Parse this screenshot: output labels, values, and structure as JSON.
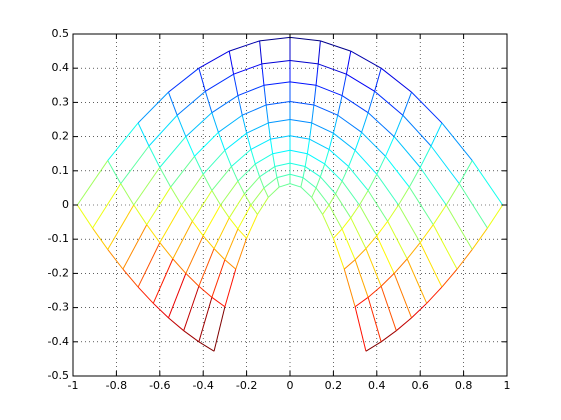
{
  "chart_data": {
    "type": "mesh",
    "colormap": "jet",
    "grid": true,
    "xlim": [
      -1,
      1
    ],
    "ylim": [
      -0.5,
      0.5
    ],
    "xticks": [
      -1,
      -0.8,
      -0.6,
      -0.4,
      -0.2,
      0,
      0.2,
      0.4,
      0.6,
      0.8,
      1
    ],
    "yticks": [
      -0.5,
      -0.4,
      -0.3,
      -0.2,
      -0.1,
      0,
      0.1,
      0.2,
      0.3,
      0.4,
      0.5
    ],
    "x": [
      [
        -0.35,
        -0.3,
        -0.25,
        -0.2,
        -0.15,
        -0.1,
        -0.05,
        0,
        0.05,
        0.1,
        0.15,
        0.2,
        0.25,
        0.3,
        0.35
      ],
      [
        -0.42,
        -0.36,
        -0.3,
        -0.24,
        -0.18,
        -0.12,
        -0.06,
        0,
        0.06,
        0.12,
        0.18,
        0.24,
        0.3,
        0.36,
        0.42
      ],
      [
        -0.49,
        -0.42,
        -0.35,
        -0.28,
        -0.21,
        -0.14,
        -0.07,
        0,
        0.07,
        0.14,
        0.21,
        0.28,
        0.35,
        0.42,
        0.49
      ],
      [
        -0.56,
        -0.48,
        -0.4,
        -0.32,
        -0.24,
        -0.16,
        -0.08,
        0,
        0.08,
        0.16,
        0.24,
        0.32,
        0.4,
        0.48,
        0.56
      ],
      [
        -0.63,
        -0.54,
        -0.45,
        -0.36,
        -0.27,
        -0.18,
        -0.09,
        0,
        0.09,
        0.18,
        0.27,
        0.36,
        0.45,
        0.54,
        0.63
      ],
      [
        -0.7,
        -0.6,
        -0.5,
        -0.4,
        -0.3,
        -0.2,
        -0.1,
        0,
        0.1,
        0.2,
        0.3,
        0.4,
        0.5,
        0.6,
        0.7
      ],
      [
        -0.77,
        -0.66,
        -0.55,
        -0.44,
        -0.33,
        -0.22,
        -0.11,
        0,
        0.11,
        0.22,
        0.33,
        0.44,
        0.55,
        0.66,
        0.77
      ],
      [
        -0.84,
        -0.72,
        -0.6,
        -0.48,
        -0.36,
        -0.24,
        -0.12,
        0,
        0.12,
        0.24,
        0.36,
        0.48,
        0.6,
        0.72,
        0.84
      ],
      [
        -0.91,
        -0.78,
        -0.65,
        -0.52,
        -0.39,
        -0.26,
        -0.13,
        0,
        0.13,
        0.26,
        0.39,
        0.52,
        0.65,
        0.78,
        0.91
      ],
      [
        -0.98,
        -0.84,
        -0.7,
        -0.56,
        -0.42,
        -0.28,
        -0.14,
        0,
        0.14,
        0.28,
        0.42,
        0.56,
        0.7,
        0.84,
        0.98
      ]
    ],
    "y": [
      [
        -0.4275,
        -0.2975,
        -0.1875,
        -0.0975,
        -0.0275,
        0.0225,
        0.0525,
        0.0625,
        0.0525,
        0.0225,
        -0.0275,
        -0.0975,
        -0.1875,
        -0.2975,
        -0.4275
      ],
      [
        -0.4,
        -0.27,
        -0.16,
        -0.07,
        0,
        0.05,
        0.08,
        0.09,
        0.08,
        0.05,
        0,
        -0.07,
        -0.16,
        -0.27,
        -0.4
      ],
      [
        -0.3675,
        -0.2375,
        -0.1275,
        -0.0375,
        0.0325,
        0.0825,
        0.1125,
        0.1225,
        0.1125,
        0.0825,
        0.0325,
        -0.0375,
        -0.1275,
        -0.2375,
        -0.3675
      ],
      [
        -0.33,
        -0.2,
        -0.09,
        0,
        0.07,
        0.12,
        0.15,
        0.16,
        0.15,
        0.12,
        0.07,
        0,
        -0.09,
        -0.2,
        -0.33
      ],
      [
        -0.2875,
        -0.1575,
        -0.0475,
        0.0425,
        0.1125,
        0.1625,
        0.1925,
        0.2025,
        0.1925,
        0.1625,
        0.1125,
        0.0425,
        -0.0475,
        -0.1575,
        -0.2875
      ],
      [
        -0.24,
        -0.11,
        0,
        0.09,
        0.16,
        0.21,
        0.24,
        0.25,
        0.24,
        0.21,
        0.16,
        0.09,
        0,
        -0.11,
        -0.24
      ],
      [
        -0.1875,
        -0.0575,
        0.0525,
        0.1425,
        0.2125,
        0.2625,
        0.2925,
        0.3025,
        0.2925,
        0.2625,
        0.2125,
        0.1425,
        0.0525,
        -0.0575,
        -0.1875
      ],
      [
        -0.13,
        0,
        0.11,
        0.2,
        0.27,
        0.32,
        0.35,
        0.36,
        0.35,
        0.32,
        0.27,
        0.2,
        0.11,
        0,
        -0.13
      ],
      [
        -0.0675,
        0.0625,
        0.1725,
        0.2625,
        0.3325,
        0.3825,
        0.4125,
        0.4225,
        0.4125,
        0.3825,
        0.3325,
        0.2625,
        0.1725,
        0.0625,
        -0.0675
      ],
      [
        0,
        0.13,
        0.24,
        0.33,
        0.4,
        0.45,
        0.48,
        0.49,
        0.48,
        0.45,
        0.4,
        0.33,
        0.24,
        0.13,
        0
      ]
    ]
  }
}
